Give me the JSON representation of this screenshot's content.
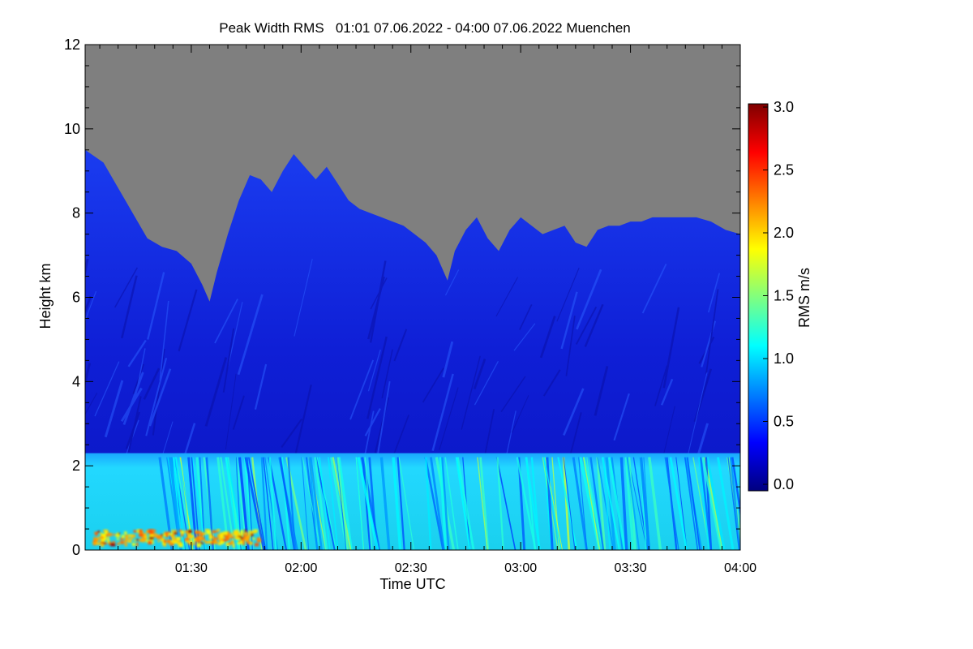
{
  "chart_data": {
    "type": "heatmap",
    "title": "Peak Width RMS   01:01 07.06.2022 - 04:00 07.06.2022 Muenchen",
    "xlabel": "Time UTC",
    "ylabel": "Height km",
    "colorbar_label": "RMS m/s",
    "x_range_minutes": [
      61,
      240
    ],
    "y_range_km": [
      0,
      12
    ],
    "x_ticks": [
      {
        "label": "01:30",
        "value": 90
      },
      {
        "label": "02:00",
        "value": 120
      },
      {
        "label": "02:30",
        "value": 150
      },
      {
        "label": "03:00",
        "value": 180
      },
      {
        "label": "03:30",
        "value": 210
      },
      {
        "label": "04:00",
        "value": 240
      }
    ],
    "y_ticks": [
      {
        "label": "0",
        "value": 0
      },
      {
        "label": "2",
        "value": 2
      },
      {
        "label": "4",
        "value": 4
      },
      {
        "label": "6",
        "value": 6
      },
      {
        "label": "8",
        "value": 8
      },
      {
        "label": "10",
        "value": 10
      },
      {
        "label": "12",
        "value": 12
      }
    ],
    "colorbar_range": [
      0,
      3
    ],
    "colorbar_ticks": [
      "0.0",
      "0.5",
      "1.0",
      "1.5",
      "2.0",
      "2.5",
      "3.0"
    ],
    "colormap": "jet",
    "no_data_color": "#7f7f7f",
    "cloud_top_km": [
      {
        "t": 61,
        "h": 9.5
      },
      {
        "t": 66,
        "h": 9.2
      },
      {
        "t": 70,
        "h": 8.6
      },
      {
        "t": 74,
        "h": 8.0
      },
      {
        "t": 78,
        "h": 7.4
      },
      {
        "t": 82,
        "h": 7.2
      },
      {
        "t": 86,
        "h": 7.1
      },
      {
        "t": 90,
        "h": 6.8
      },
      {
        "t": 93,
        "h": 6.3
      },
      {
        "t": 95,
        "h": 5.9
      },
      {
        "t": 97,
        "h": 6.6
      },
      {
        "t": 100,
        "h": 7.5
      },
      {
        "t": 103,
        "h": 8.3
      },
      {
        "t": 106,
        "h": 8.9
      },
      {
        "t": 109,
        "h": 8.8
      },
      {
        "t": 112,
        "h": 8.5
      },
      {
        "t": 115,
        "h": 9.0
      },
      {
        "t": 118,
        "h": 9.4
      },
      {
        "t": 121,
        "h": 9.1
      },
      {
        "t": 124,
        "h": 8.8
      },
      {
        "t": 127,
        "h": 9.1
      },
      {
        "t": 130,
        "h": 8.7
      },
      {
        "t": 133,
        "h": 8.3
      },
      {
        "t": 136,
        "h": 8.1
      },
      {
        "t": 139,
        "h": 8.0
      },
      {
        "t": 142,
        "h": 7.9
      },
      {
        "t": 145,
        "h": 7.8
      },
      {
        "t": 148,
        "h": 7.7
      },
      {
        "t": 151,
        "h": 7.5
      },
      {
        "t": 154,
        "h": 7.3
      },
      {
        "t": 157,
        "h": 7.0
      },
      {
        "t": 160,
        "h": 6.4
      },
      {
        "t": 162,
        "h": 7.1
      },
      {
        "t": 165,
        "h": 7.6
      },
      {
        "t": 168,
        "h": 7.9
      },
      {
        "t": 171,
        "h": 7.4
      },
      {
        "t": 174,
        "h": 7.1
      },
      {
        "t": 177,
        "h": 7.6
      },
      {
        "t": 180,
        "h": 7.9
      },
      {
        "t": 183,
        "h": 7.7
      },
      {
        "t": 186,
        "h": 7.5
      },
      {
        "t": 189,
        "h": 7.6
      },
      {
        "t": 192,
        "h": 7.7
      },
      {
        "t": 195,
        "h": 7.3
      },
      {
        "t": 198,
        "h": 7.2
      },
      {
        "t": 201,
        "h": 7.6
      },
      {
        "t": 204,
        "h": 7.7
      },
      {
        "t": 207,
        "h": 7.7
      },
      {
        "t": 210,
        "h": 7.8
      },
      {
        "t": 213,
        "h": 7.8
      },
      {
        "t": 216,
        "h": 7.9
      },
      {
        "t": 220,
        "h": 7.9
      },
      {
        "t": 224,
        "h": 7.9
      },
      {
        "t": 228,
        "h": 7.9
      },
      {
        "t": 232,
        "h": 7.8
      },
      {
        "t": 236,
        "h": 7.6
      },
      {
        "t": 240,
        "h": 7.5
      }
    ],
    "boundary_layer_top_km": 2.3,
    "typical_rms": {
      "upper_cloud": 0.35,
      "boundary_layer": 1.0,
      "surface_peak": 2.1
    }
  }
}
